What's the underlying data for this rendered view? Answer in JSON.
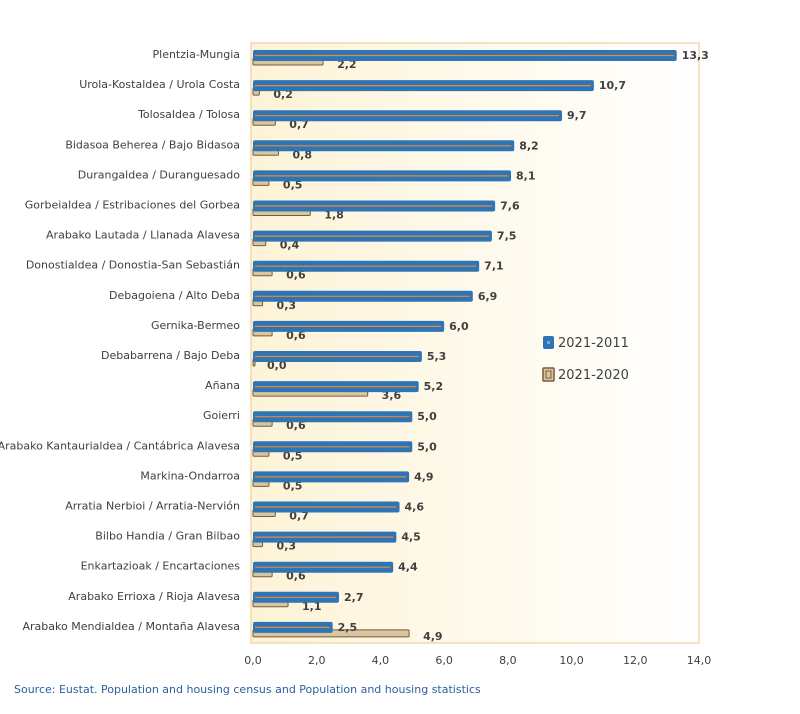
{
  "chart_data": {
    "type": "bar",
    "orientation": "horizontal",
    "categories": [
      "Plentzia-Mungia",
      "Urola-Kostaldea / Urola Costa",
      "Tolosaldea / Tolosa",
      "Bidasoa Beherea / Bajo Bidasoa",
      "Durangaldea / Duranguesado",
      "Gorbeialdea / Estribaciones del Gorbea",
      "Arabako Lautada / Llanada Alavesa",
      "Donostialdea / Donostia-San Sebastián",
      "Debagoiena / Alto Deba",
      "Gernika-Bermeo",
      "Debabarrena / Bajo Deba",
      "Añana",
      "Goierri",
      "Arabako Kantaurialdea / Cantábrica Alavesa",
      "Markina-Ondarroa",
      "Arratia Nerbioi / Arratia-Nervión",
      "Bilbo Handia / Gran Bilbao",
      "Enkartazioak / Encartaciones",
      "Arabako Errioxa / Rioja Alavesa",
      "Arabako Mendialdea / Montaña Alavesa"
    ],
    "series": [
      {
        "name": "2021-2011",
        "color": "#2e75b6",
        "values": [
          13.3,
          10.7,
          9.7,
          8.2,
          8.1,
          7.6,
          7.5,
          7.1,
          6.9,
          6.0,
          5.3,
          5.2,
          5.0,
          5.0,
          4.9,
          4.6,
          4.5,
          4.4,
          2.7,
          2.5
        ],
        "labels": [
          "13,3",
          "10,7",
          "9,7",
          "8,2",
          "8,1",
          "7,6",
          "7,5",
          "7,1",
          "6,9",
          "6,0",
          "5,3",
          "5,2",
          "5,0",
          "5,0",
          "4,9",
          "4,6",
          "4,5",
          "4,4",
          "2,7",
          "2,5"
        ]
      },
      {
        "name": "2021-2020",
        "color": "#c5b08a",
        "values": [
          2.2,
          0.2,
          0.7,
          0.8,
          0.5,
          1.8,
          0.4,
          0.6,
          0.3,
          0.6,
          0.0,
          3.6,
          0.6,
          0.5,
          0.5,
          0.7,
          0.3,
          0.6,
          1.1,
          4.9
        ],
        "labels": [
          "2,2",
          "0,2",
          "0,7",
          "0,8",
          "0,5",
          "1,8",
          "0,4",
          "0,6",
          "0,3",
          "0,6",
          "0,0",
          "3,6",
          "0,6",
          "0,5",
          "0,5",
          "0,7",
          "0,3",
          "0,6",
          "1,1",
          "4,9"
        ]
      }
    ],
    "xlim": [
      0,
      14
    ],
    "xticks": [
      0,
      2,
      4,
      6,
      8,
      10,
      12,
      14
    ],
    "xtick_labels": [
      "0,0",
      "2,0",
      "4,0",
      "6,0",
      "8,0",
      "10,0",
      "12,0",
      "14,0"
    ],
    "legend_position": "right",
    "grid": false,
    "title": "",
    "xlabel": "",
    "ylabel": ""
  },
  "source_text": "Source: Eustat. Population and housing census and Population and housing statistics"
}
